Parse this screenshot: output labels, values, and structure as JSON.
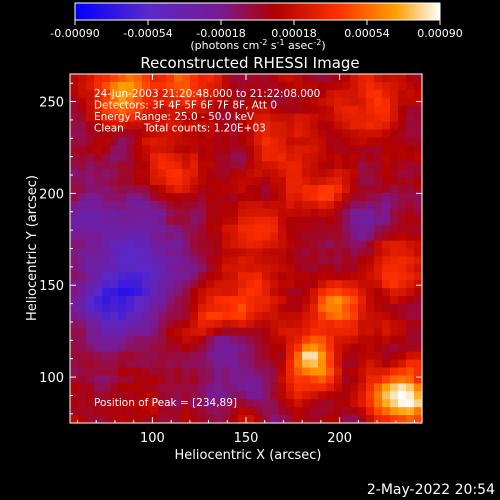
{
  "colorbar": {
    "tick_labels": [
      "-0.00090",
      "-0.00054",
      "-0.00018",
      "0.00018",
      "0.00054",
      "0.00090"
    ],
    "range": [
      -0.0009,
      0.0009
    ],
    "unit_main": "(photons cm",
    "unit_sup1": "-2",
    "unit_mid": " s",
    "unit_sup2": "-1",
    "unit_mid2": " asec",
    "unit_sup3": "-2",
    "unit_end": ")",
    "colors": [
      "#0000ff",
      "#5a28c8",
      "#7a1a90",
      "#b00000",
      "#ff3000",
      "#ffa000",
      "#ffffff"
    ]
  },
  "chart_data": {
    "type": "heatmap",
    "title": "Reconstructed RHESSI Image",
    "xlabel": "Heliocentric X (arcsec)",
    "ylabel": "Heliocentric Y (arcsec)",
    "xlim": [
      56,
      244
    ],
    "ylim": [
      75,
      265
    ],
    "x_ticks": [
      100,
      150,
      200
    ],
    "y_ticks": [
      100,
      150,
      200,
      250
    ],
    "x_tick_labels": [
      "100",
      "150",
      "200"
    ],
    "y_tick_labels": [
      "100",
      "150",
      "200",
      "250"
    ],
    "annotations": [
      "24-Jun-2003 21:20:48.000 to 21:22:08.000",
      "Detectors: 3F 4F 5F 6F 7F 8F, Att 0",
      "Energy Range: 25.0 - 50.0 keV",
      "Clean      Total counts: 1.20E+03"
    ],
    "peak_label": "Position of Peak = [234,89]",
    "peak_position": [
      234,
      89
    ],
    "hot_spots": [
      {
        "x": 234,
        "y": 89,
        "value": 0.0009
      },
      {
        "x": 85,
        "y": 255,
        "value": 0.0006
      },
      {
        "x": 120,
        "y": 262,
        "value": 0.0005
      },
      {
        "x": 185,
        "y": 108,
        "value": 0.00065
      },
      {
        "x": 150,
        "y": 140,
        "value": 0.0004
      },
      {
        "x": 200,
        "y": 140,
        "value": 0.00045
      },
      {
        "x": 230,
        "y": 160,
        "value": 0.0004
      },
      {
        "x": 170,
        "y": 230,
        "value": 0.0003
      },
      {
        "x": 110,
        "y": 215,
        "value": 0.00035
      },
      {
        "x": 160,
        "y": 180,
        "value": 0.0003
      },
      {
        "x": 215,
        "y": 250,
        "value": 0.00035
      },
      {
        "x": 130,
        "y": 130,
        "value": 0.00025
      },
      {
        "x": 190,
        "y": 200,
        "value": 0.0003
      }
    ],
    "cold_spots": [
      {
        "x": 80,
        "y": 140,
        "value": -0.0006
      },
      {
        "x": 100,
        "y": 165,
        "value": -0.0004
      },
      {
        "x": 70,
        "y": 190,
        "value": -0.0003
      },
      {
        "x": 140,
        "y": 105,
        "value": -0.0003
      },
      {
        "x": 210,
        "y": 180,
        "value": -0.0002
      }
    ]
  },
  "timestamp": "2-May-2022 20:54"
}
